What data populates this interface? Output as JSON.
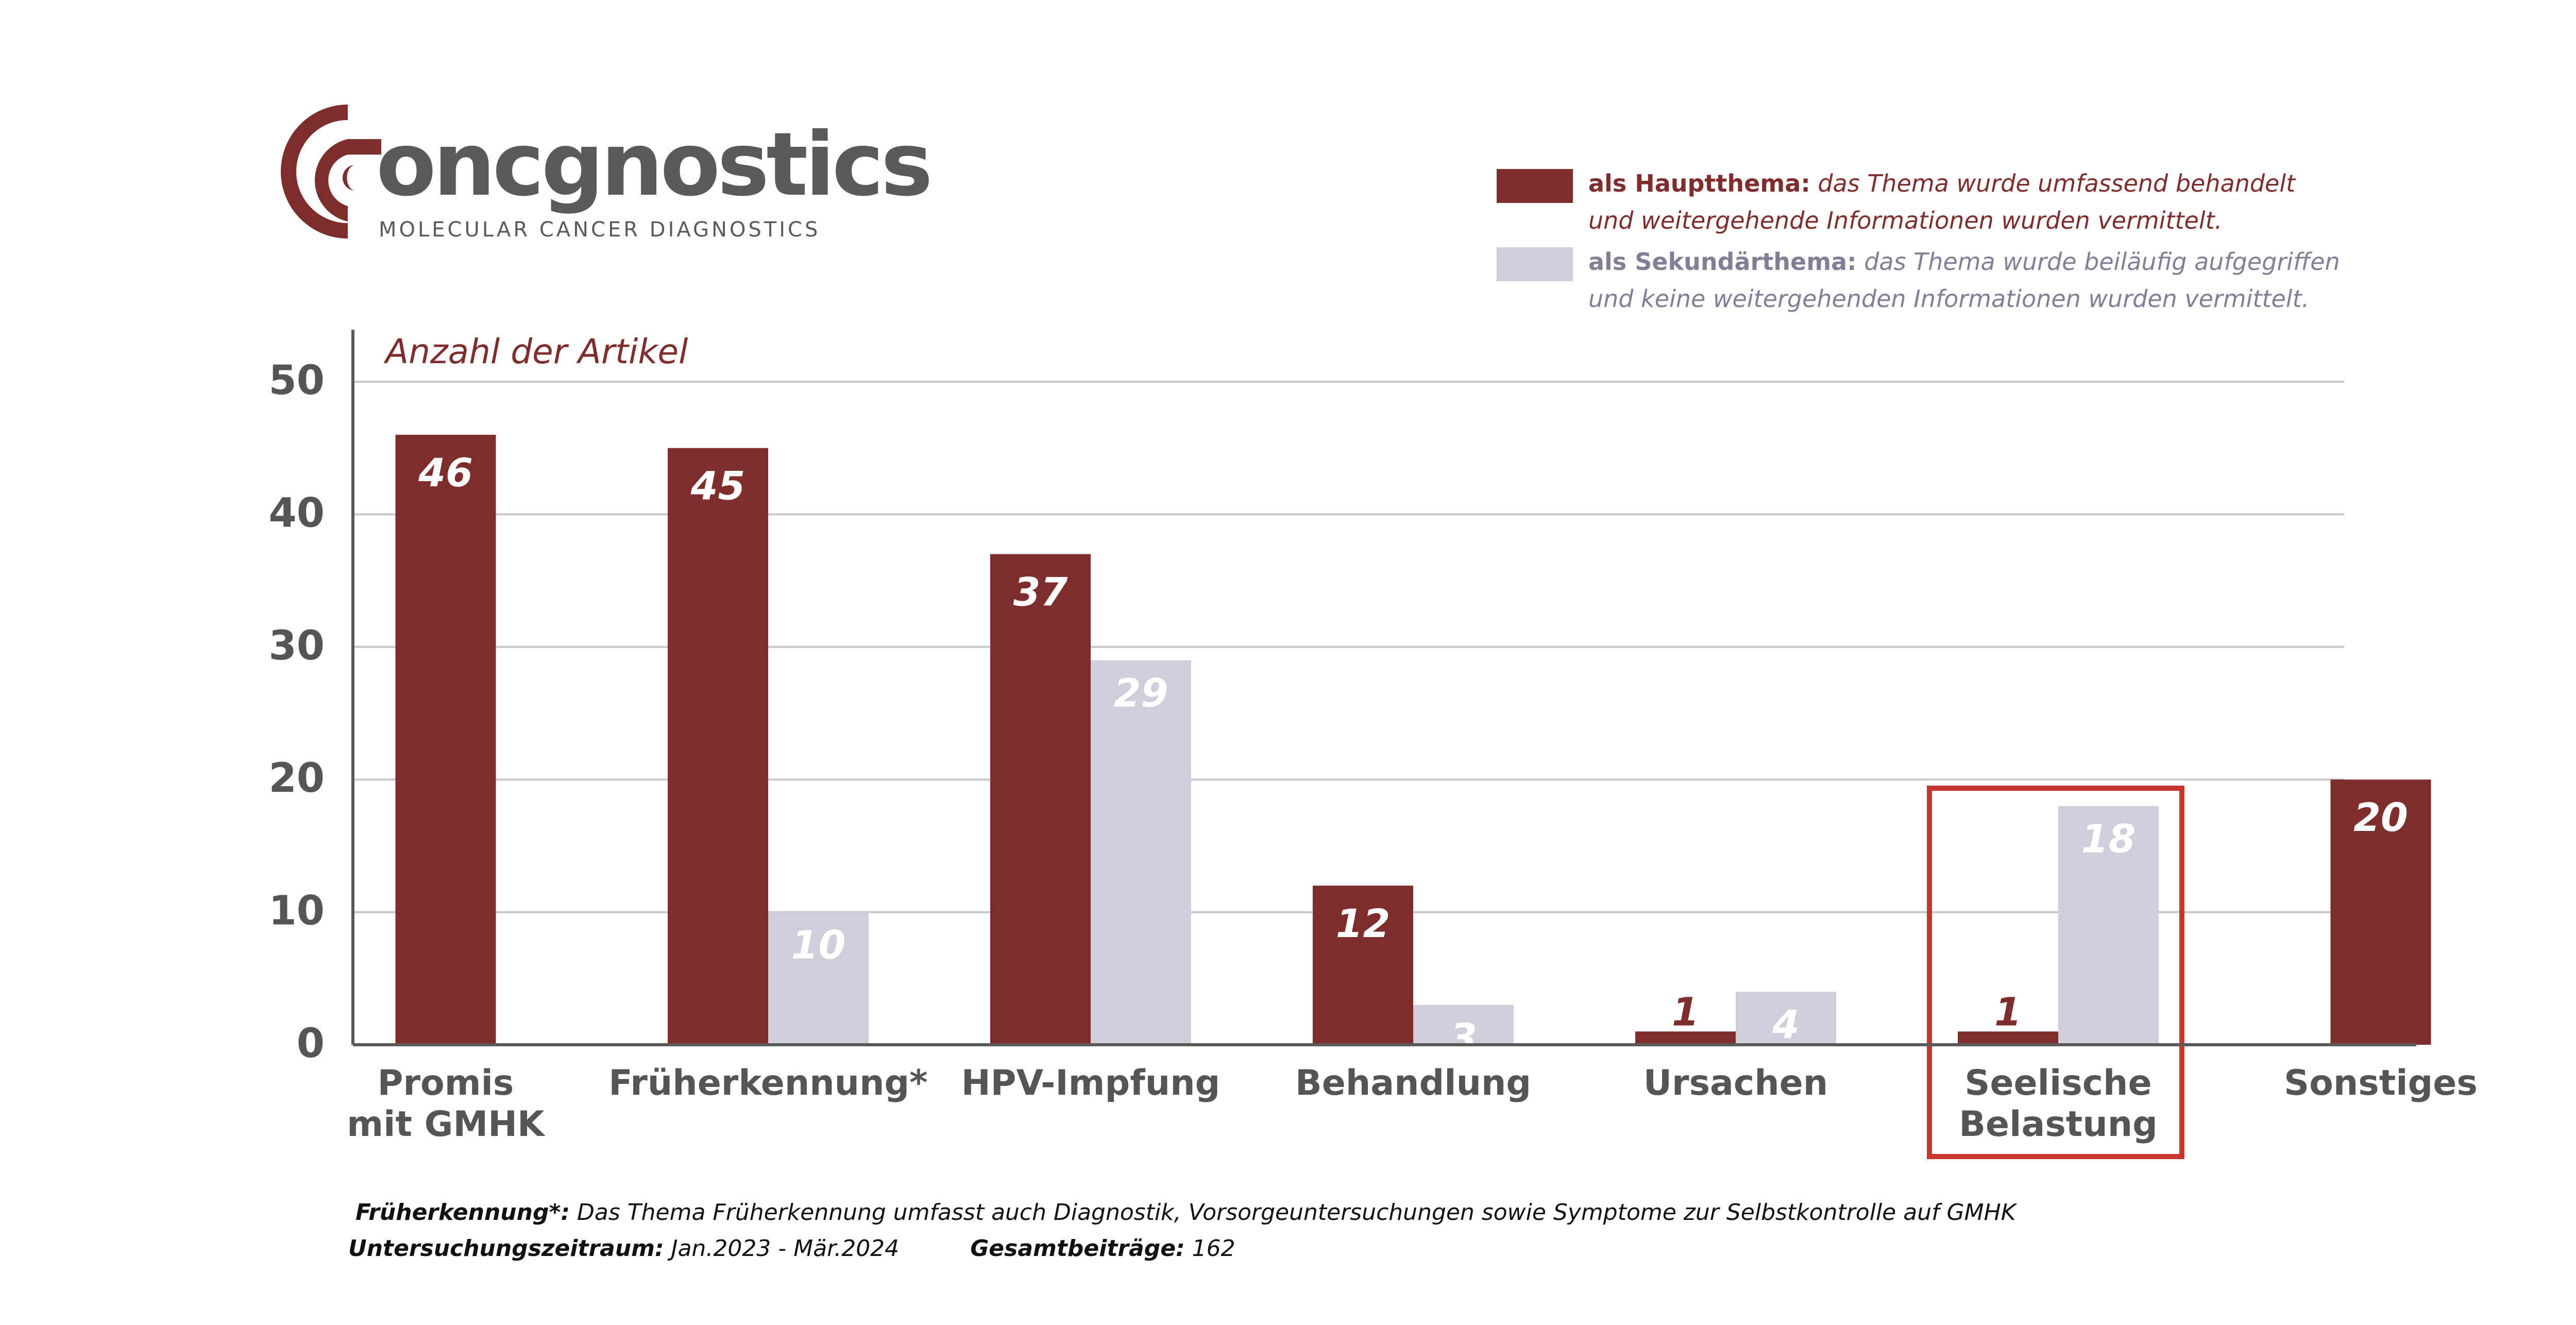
{
  "brand": {
    "name": "oncgnostics",
    "tagline": "MOLECULAR   CANCER  DIAGNOSTICS",
    "colors": {
      "primary": "#7f2d2c",
      "secondary": "#cfcfdb",
      "text": "#5a5a5a",
      "highlight": "#c8352f"
    }
  },
  "legend": [
    {
      "label": "als Hauptthema:",
      "desc_line1": "das Thema wurde umfassend behandelt",
      "desc_line2": "und  weitergehende Informationen wurden vermittelt.",
      "color": "#7f2d2c",
      "text_color": "#7f2d2c"
    },
    {
      "label": "als Sekundärthema:",
      "desc_line1": "das Thema wurde beiläufig aufgegriffen",
      "desc_line2": "und keine weitergehenden Informationen  wurden vermittelt.",
      "color": "#cfcfdb",
      "text_color": "#817f96"
    }
  ],
  "chart_data": {
    "type": "bar",
    "title": "",
    "ylabel": "Anzahl der Artikel",
    "xlabel": "",
    "ylim": [
      0,
      50
    ],
    "yticks": [
      0,
      10,
      20,
      30,
      40,
      50
    ],
    "grid": true,
    "legend_position": "top-right",
    "categories": [
      [
        "Promis",
        "mit GMHK"
      ],
      [
        "Früherkennung*"
      ],
      [
        "HPV-Impfung"
      ],
      [
        "Behandlung"
      ],
      [
        "Ursachen"
      ],
      [
        "Seelische",
        "Belastung"
      ],
      [
        "Sonstiges"
      ]
    ],
    "highlighted_category": 5,
    "series": [
      {
        "name": "als Hauptthema",
        "color": "#7f2d2c",
        "values": [
          46,
          45,
          37,
          12,
          1,
          1,
          20
        ]
      },
      {
        "name": "als Sekundärthema",
        "color": "#cfcfdb",
        "values": [
          null,
          10,
          29,
          3,
          4,
          18,
          null
        ]
      }
    ]
  },
  "footer": {
    "note_label": "Früherkennung*:",
    "note_text": " Das Thema Früherkennung umfasst auch Diagnostik, Vorsorgeuntersuchungen sowie Symptome zur Selbstkontrolle auf GMHK",
    "period_label": "Untersuchungszeitraum:",
    "period_value": " Jan.2023 - Mär.2024",
    "total_label": "Gesamtbeiträge:",
    "total_value": " 162"
  }
}
